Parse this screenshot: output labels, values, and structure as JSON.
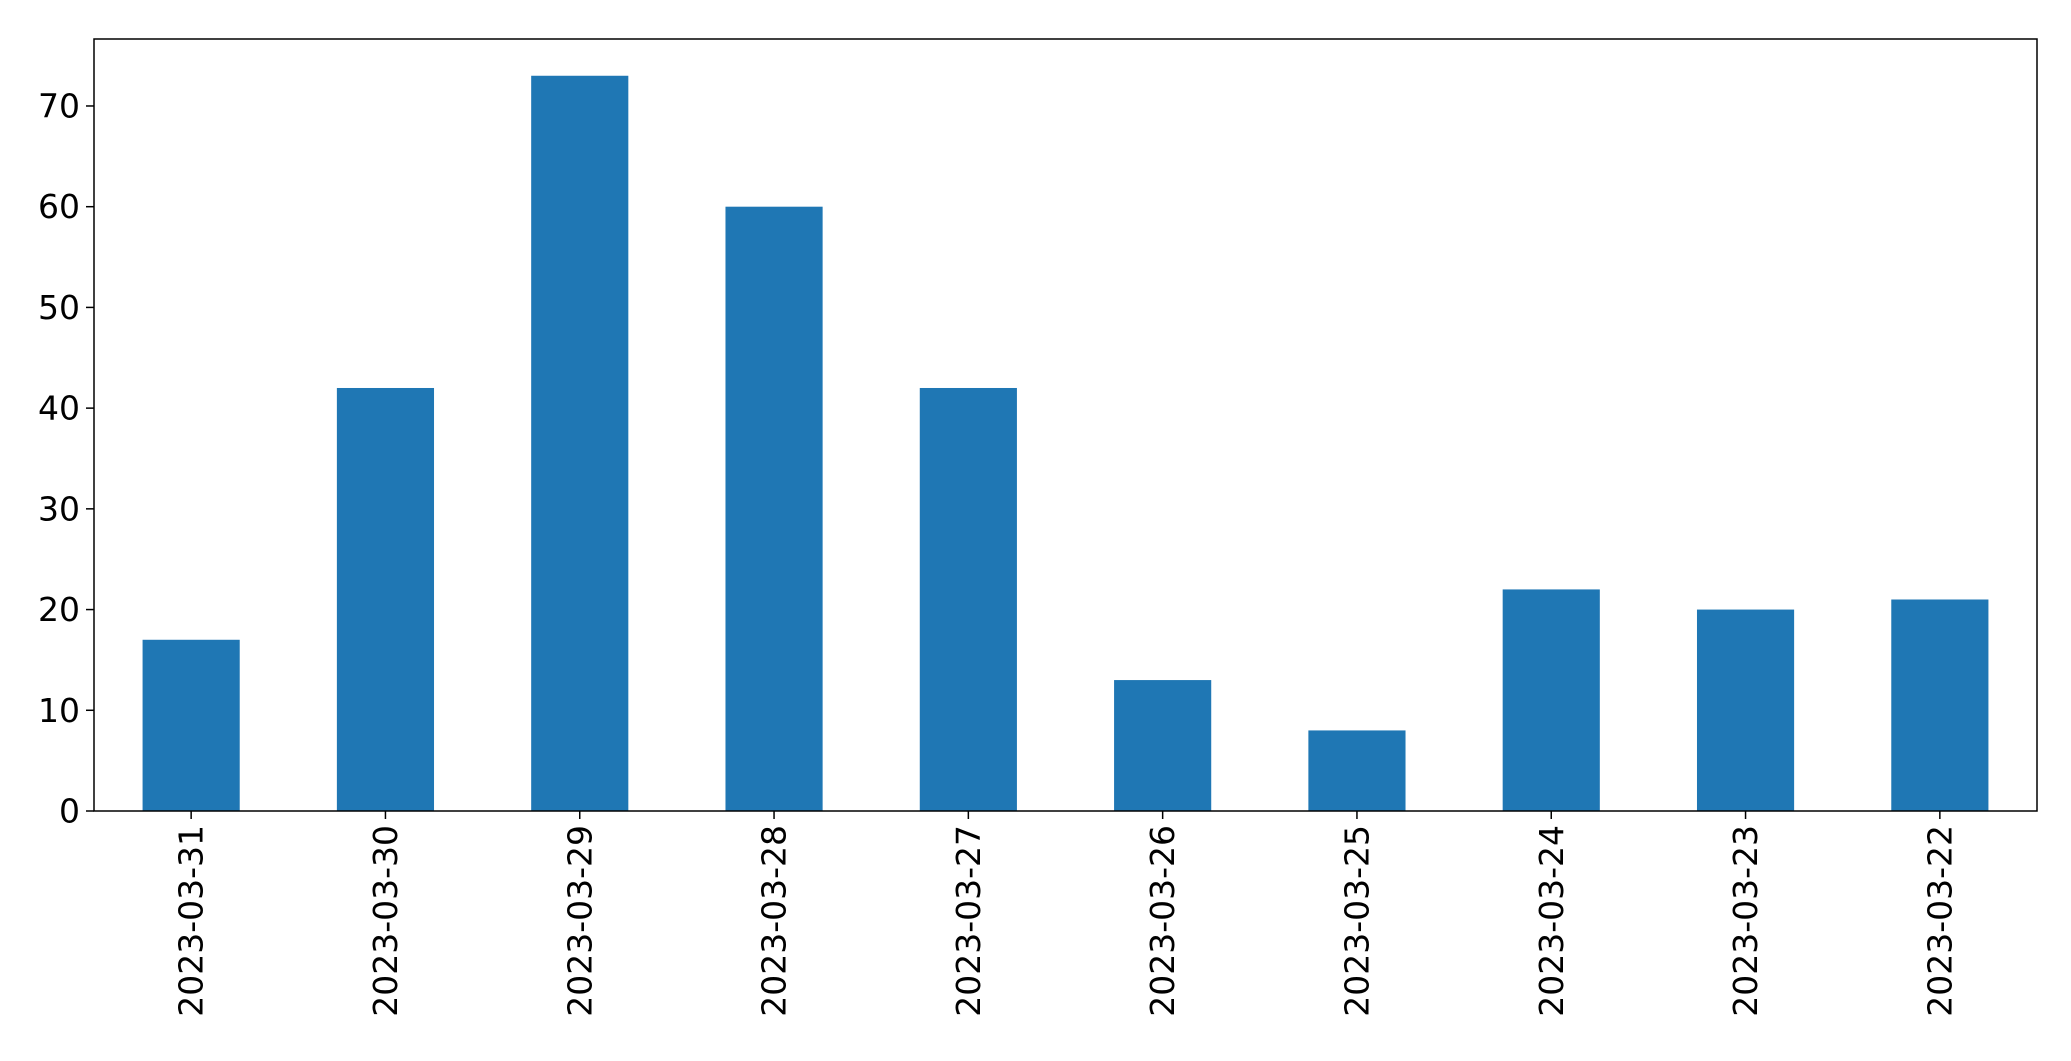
{
  "chart_data": {
    "type": "bar",
    "categories": [
      "2023-03-31",
      "2023-03-30",
      "2023-03-29",
      "2023-03-28",
      "2023-03-27",
      "2023-03-26",
      "2023-03-25",
      "2023-03-24",
      "2023-03-23",
      "2023-03-22"
    ],
    "values": [
      17,
      42,
      73,
      60,
      42,
      13,
      8,
      22,
      20,
      21
    ],
    "title": "",
    "xlabel": "",
    "ylabel": "",
    "ylim": [
      0,
      76.65
    ],
    "yticks": [
      0,
      10,
      20,
      30,
      40,
      50,
      60,
      70
    ],
    "grid": false,
    "legend": "none",
    "colors": {
      "bar": "#1f77b4",
      "axes": "#000000",
      "background": "#ffffff"
    }
  }
}
